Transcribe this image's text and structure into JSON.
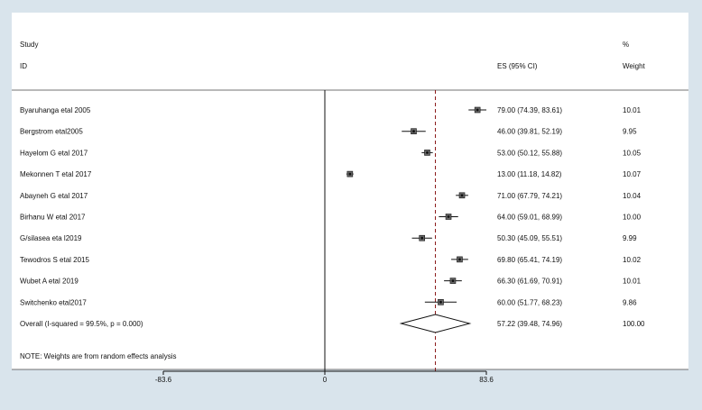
{
  "chart_data": {
    "type": "forest",
    "header": {
      "study_line1": "Study",
      "study_line2": "ID",
      "es_label": "ES (95% CI)",
      "weight_line1": "%",
      "weight_line2": "Weight"
    },
    "studies": [
      {
        "name": "Byaruhanga etal 2005",
        "es": 79.0,
        "lo": 74.39,
        "hi": 83.61,
        "es_text": "79.00 (74.39, 83.61)",
        "weight": "10.01"
      },
      {
        "name": "Bergstrom etal2005",
        "es": 46.0,
        "lo": 39.81,
        "hi": 52.19,
        "es_text": "46.00 (39.81, 52.19)",
        "weight": "9.95"
      },
      {
        "name": "Hayelom G etal 2017",
        "es": 53.0,
        "lo": 50.12,
        "hi": 55.88,
        "es_text": "53.00 (50.12, 55.88)",
        "weight": "10.05"
      },
      {
        "name": "Mekonnen T etal 2017",
        "es": 13.0,
        "lo": 11.18,
        "hi": 14.82,
        "es_text": "13.00 (11.18, 14.82)",
        "weight": "10.07"
      },
      {
        "name": "Abayneh G etal 2017",
        "es": 71.0,
        "lo": 67.79,
        "hi": 74.21,
        "es_text": "71.00 (67.79, 74.21)",
        "weight": "10.04"
      },
      {
        "name": "Birhanu W etal 2017",
        "es": 64.0,
        "lo": 59.01,
        "hi": 68.99,
        "es_text": "64.00 (59.01, 68.99)",
        "weight": "10.00"
      },
      {
        "name": "G/silasea eta l2019",
        "es": 50.3,
        "lo": 45.09,
        "hi": 55.51,
        "es_text": "50.30 (45.09, 55.51)",
        "weight": "9.99"
      },
      {
        "name": "Tewodros S etal 2015",
        "es": 69.8,
        "lo": 65.41,
        "hi": 74.19,
        "es_text": "69.80 (65.41, 74.19)",
        "weight": "10.02"
      },
      {
        "name": "Wubet A etal 2019",
        "es": 66.3,
        "lo": 61.69,
        "hi": 70.91,
        "es_text": "66.30 (61.69, 70.91)",
        "weight": "10.01"
      },
      {
        "name": "Switchenko etal2017",
        "es": 60.0,
        "lo": 51.77,
        "hi": 68.23,
        "es_text": "60.00 (51.77, 68.23)",
        "weight": "9.86"
      }
    ],
    "overall": {
      "name": "Overall  (I-squared = 99.5%, p = 0.000)",
      "es": 57.22,
      "lo": 39.48,
      "hi": 74.96,
      "es_text": "57.22 (39.48, 74.96)",
      "weight": "100.00"
    },
    "note": "NOTE: Weights are from random effects analysis",
    "x_ticks": [
      {
        "value": -83.6,
        "label": "-83.6"
      },
      {
        "value": 0,
        "label": "0"
      },
      {
        "value": 83.6,
        "label": "83.6"
      }
    ],
    "null_line": 0,
    "colors": {
      "background": "#d9e4ec",
      "panel": "#ffffff",
      "pooled_line": "#8b1a1a",
      "marks": "#111111"
    }
  }
}
